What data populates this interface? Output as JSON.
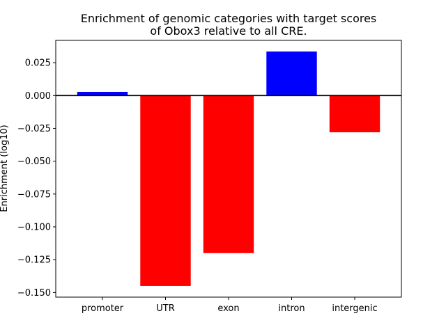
{
  "chart_data": {
    "type": "bar",
    "title_line1": "Enrichment of genomic categories with target scores",
    "title_line2": "of Obox3 relative to all CRE.",
    "xlabel": "",
    "ylabel": "Enrichment (log10)",
    "categories": [
      "promoter",
      "UTR",
      "exon",
      "intron",
      "intergenic"
    ],
    "values": [
      0.0028,
      -0.145,
      -0.12,
      0.0335,
      -0.028
    ],
    "colors": [
      "#0000ff",
      "#ff0000",
      "#ff0000",
      "#0000ff",
      "#ff0000"
    ],
    "ylim": [
      -0.1535,
      0.042
    ],
    "yticks": [
      0.025,
      0.0,
      -0.025,
      -0.05,
      -0.075,
      -0.1,
      -0.125,
      -0.15
    ],
    "ytick_labels": [
      "0.025",
      "0.000",
      "−0.025",
      "−0.050",
      "−0.075",
      "−0.100",
      "−0.125",
      "−0.150"
    ],
    "baseline": 0,
    "grid": false,
    "legend": "none"
  }
}
